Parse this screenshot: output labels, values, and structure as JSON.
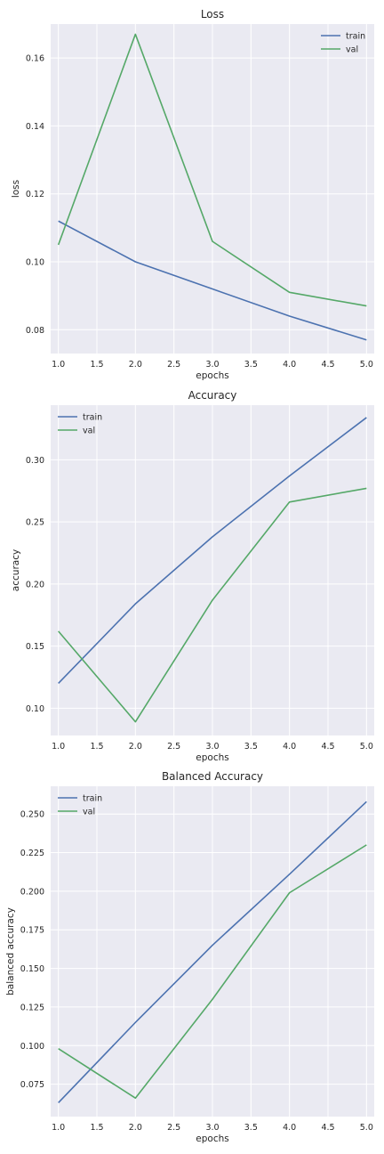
{
  "chart_data": [
    {
      "type": "line",
      "title": "Loss",
      "xlabel": "epochs",
      "ylabel": "loss",
      "xlim": [
        0.9,
        5.1
      ],
      "ylim": [
        0.073,
        0.17
      ],
      "xticks": [
        1.0,
        1.5,
        2.0,
        2.5,
        3.0,
        3.5,
        4.0,
        4.5,
        5.0
      ],
      "xtick_labels": [
        "1.0",
        "1.5",
        "2.0",
        "2.5",
        "3.0",
        "3.5",
        "4.0",
        "4.5",
        "5.0"
      ],
      "yticks": [
        0.08,
        0.1,
        0.12,
        0.14,
        0.16
      ],
      "ytick_labels": [
        "0.08",
        "0.10",
        "0.12",
        "0.14",
        "0.16"
      ],
      "legend": "top-right",
      "grid": true,
      "x": [
        1,
        2,
        3,
        4,
        5
      ],
      "series": [
        {
          "name": "train",
          "color": "#4c72b0",
          "values": [
            0.112,
            0.1,
            0.092,
            0.084,
            0.077
          ]
        },
        {
          "name": "val",
          "color": "#55a868",
          "values": [
            0.105,
            0.167,
            0.106,
            0.091,
            0.087
          ]
        }
      ]
    },
    {
      "type": "line",
      "title": "Accuracy",
      "xlabel": "epochs",
      "ylabel": "accuracy",
      "xlim": [
        0.9,
        5.1
      ],
      "ylim": [
        0.078,
        0.344
      ],
      "xticks": [
        1.0,
        1.5,
        2.0,
        2.5,
        3.0,
        3.5,
        4.0,
        4.5,
        5.0
      ],
      "xtick_labels": [
        "1.0",
        "1.5",
        "2.0",
        "2.5",
        "3.0",
        "3.5",
        "4.0",
        "4.5",
        "5.0"
      ],
      "yticks": [
        0.1,
        0.15,
        0.2,
        0.25,
        0.3
      ],
      "ytick_labels": [
        "0.10",
        "0.15",
        "0.20",
        "0.25",
        "0.30"
      ],
      "legend": "top-left",
      "grid": true,
      "x": [
        1,
        2,
        3,
        4,
        5
      ],
      "series": [
        {
          "name": "train",
          "color": "#4c72b0",
          "values": [
            0.12,
            0.184,
            0.238,
            0.287,
            0.334
          ]
        },
        {
          "name": "val",
          "color": "#55a868",
          "values": [
            0.162,
            0.089,
            0.187,
            0.266,
            0.277
          ]
        }
      ]
    },
    {
      "type": "line",
      "title": "Balanced Accuracy",
      "xlabel": "epochs",
      "ylabel": "balanced accuracy",
      "xlim": [
        0.9,
        5.1
      ],
      "ylim": [
        0.054,
        0.268
      ],
      "xticks": [
        1.0,
        1.5,
        2.0,
        2.5,
        3.0,
        3.5,
        4.0,
        4.5,
        5.0
      ],
      "xtick_labels": [
        "1.0",
        "1.5",
        "2.0",
        "2.5",
        "3.0",
        "3.5",
        "4.0",
        "4.5",
        "5.0"
      ],
      "yticks": [
        0.075,
        0.1,
        0.125,
        0.15,
        0.175,
        0.2,
        0.225,
        0.25
      ],
      "ytick_labels": [
        "0.075",
        "0.100",
        "0.125",
        "0.150",
        "0.175",
        "0.200",
        "0.225",
        "0.250"
      ],
      "legend": "top-left",
      "grid": true,
      "x": [
        1,
        2,
        3,
        4,
        5
      ],
      "series": [
        {
          "name": "train",
          "color": "#4c72b0",
          "values": [
            0.063,
            0.115,
            0.165,
            0.211,
            0.258
          ]
        },
        {
          "name": "val",
          "color": "#55a868",
          "values": [
            0.098,
            0.066,
            0.13,
            0.199,
            0.23
          ]
        }
      ]
    }
  ],
  "style": {
    "plot_background": "#eaeaf2",
    "grid_color": "#ffffff",
    "text_color": "#262626"
  }
}
